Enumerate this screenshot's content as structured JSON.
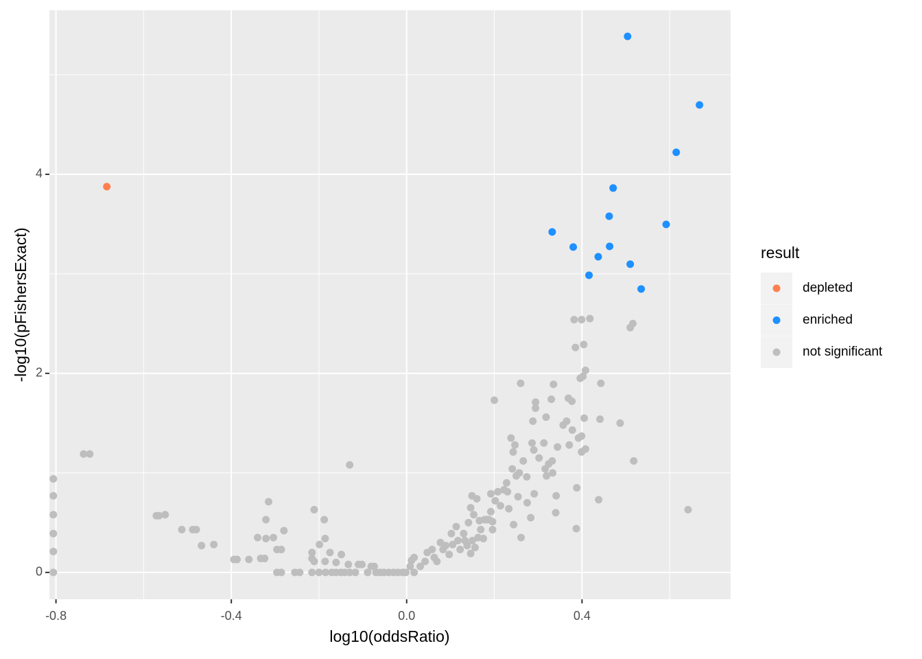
{
  "chart_data": {
    "type": "scatter",
    "xlabel": "log10(oddsRatio)",
    "ylabel": "-log10(pFishersExact)",
    "xlim": [
      -0.815,
      0.739
    ],
    "ylim": [
      -0.27,
      5.648
    ],
    "xticks": [
      -0.8,
      -0.4,
      {
        "value": 0,
        "label": "0.0"
      },
      0.4
    ],
    "yticks": [
      0,
      2,
      4
    ],
    "grid": true,
    "legend_title": "result",
    "legend_position": "right",
    "series": [
      {
        "name": "depleted",
        "color": "#FF7F50",
        "x": [
          -0.684
        ],
        "y": [
          3.876
        ]
      },
      {
        "name": "enriched",
        "color": "#1E90FF",
        "x": [
          0.504,
          0.668,
          0.615,
          0.471,
          0.462,
          0.592,
          0.332,
          0.38,
          0.463,
          0.437,
          0.51,
          0.416,
          0.535
        ],
        "y": [
          5.386,
          4.697,
          4.221,
          3.862,
          3.579,
          3.497,
          3.421,
          3.269,
          3.276,
          3.172,
          3.097,
          2.986,
          2.848
        ]
      },
      {
        "name": "not significant",
        "color": "#BEBEBE",
        "x": [
          -0.806,
          -0.806,
          -0.806,
          -0.806,
          -0.806,
          -0.806,
          -0.737,
          -0.723,
          -0.571,
          -0.565,
          -0.551,
          -0.513,
          -0.488,
          -0.48,
          -0.468,
          -0.44,
          -0.394,
          -0.387,
          -0.36,
          -0.333,
          -0.324,
          -0.34,
          -0.321,
          -0.304,
          -0.321,
          -0.315,
          -0.296,
          -0.286,
          -0.28,
          -0.296,
          -0.286,
          -0.255,
          -0.244,
          -0.216,
          -0.211,
          -0.216,
          -0.199,
          -0.188,
          -0.186,
          -0.186,
          -0.211,
          -0.175,
          -0.161,
          -0.149,
          -0.13,
          -0.133,
          -0.216,
          -0.2,
          -0.185,
          -0.171,
          -0.161,
          -0.15,
          -0.141,
          -0.13,
          -0.117,
          -0.11,
          -0.102,
          -0.089,
          -0.081,
          -0.074,
          -0.07,
          -0.061,
          -0.052,
          -0.041,
          -0.03,
          -0.02,
          -0.009,
          -0.002,
          0.017,
          0.011,
          0.017,
          0.008,
          0.031,
          0.042,
          0.047,
          0.058,
          0.063,
          0.069,
          0.077,
          0.083,
          0.089,
          0.097,
          0.102,
          0.105,
          0.113,
          0.117,
          0.122,
          0.13,
          0.133,
          0.138,
          0.141,
          0.146,
          0.146,
          0.149,
          0.15,
          0.153,
          0.156,
          0.16,
          0.163,
          0.166,
          0.169,
          0.175,
          0.178,
          0.183,
          0.188,
          0.192,
          0.192,
          0.196,
          0.196,
          0.2,
          0.202,
          0.208,
          0.214,
          0.222,
          0.228,
          0.23,
          0.233,
          0.238,
          0.241,
          0.243,
          0.244,
          0.247,
          0.25,
          0.254,
          0.257,
          0.26,
          0.261,
          0.266,
          0.274,
          0.275,
          0.283,
          0.286,
          0.288,
          0.29,
          0.291,
          0.294,
          0.294,
          0.302,
          0.313,
          0.316,
          0.318,
          0.319,
          0.324,
          0.33,
          0.332,
          0.333,
          0.335,
          0.34,
          0.341,
          0.344,
          0.357,
          0.365,
          0.369,
          0.371,
          0.377,
          0.378,
          0.382,
          0.385,
          0.387,
          0.388,
          0.392,
          0.396,
          0.399,
          0.399,
          0.402,
          0.404,
          0.405,
          0.408,
          0.408,
          0.418,
          0.438,
          0.441,
          0.443,
          0.487,
          0.51,
          0.516,
          0.518,
          0.642,
          0.399
        ],
        "y": [
          0.94,
          0.77,
          0.58,
          0.39,
          0.21,
          0,
          1.19,
          1.19,
          0.57,
          0.57,
          0.58,
          0.43,
          0.43,
          0.43,
          0.27,
          0.28,
          0.13,
          0.13,
          0.13,
          0.14,
          0.14,
          0.35,
          0.34,
          0.35,
          0.53,
          0.71,
          0.23,
          0.23,
          0.42,
          0,
          0,
          0,
          0,
          0.14,
          0.63,
          0.2,
          0.28,
          0.53,
          0.34,
          0.11,
          0.11,
          0.2,
          0.1,
          0.18,
          1.08,
          0.08,
          0,
          0,
          0,
          0,
          0,
          0,
          0,
          0,
          0,
          0.08,
          0.08,
          0,
          0.06,
          0.06,
          0,
          0,
          0,
          0,
          0,
          0,
          0,
          0,
          0,
          0.12,
          0.15,
          0.06,
          0.06,
          0.11,
          0.2,
          0.23,
          0.15,
          0.11,
          0.3,
          0.23,
          0.27,
          0.18,
          0.39,
          0.28,
          0.46,
          0.32,
          0.23,
          0.39,
          0.32,
          0.27,
          0.5,
          0.19,
          0.65,
          0.77,
          0.32,
          0.58,
          0.25,
          0.74,
          0.35,
          0.52,
          0.43,
          0.34,
          0.53,
          0.53,
          0.53,
          0.79,
          0.61,
          0.51,
          0.43,
          1.73,
          0.72,
          0.81,
          0.67,
          0.83,
          0.9,
          0.81,
          0.64,
          1.35,
          1.04,
          1.21,
          0.48,
          1.28,
          0.97,
          0.76,
          1.0,
          1.9,
          0.35,
          1.12,
          0.96,
          0.7,
          0.55,
          1.3,
          1.52,
          1.23,
          0.79,
          1.65,
          1.71,
          1.15,
          1.3,
          1.04,
          1.56,
          0.97,
          1.09,
          1.74,
          1.12,
          1.0,
          1.89,
          0.6,
          0.77,
          1.26,
          1.48,
          1.52,
          1.75,
          1.28,
          1.72,
          1.43,
          2.54,
          2.26,
          0.44,
          0.85,
          1.35,
          1.95,
          2.54,
          1.37,
          1.97,
          2.29,
          1.55,
          1.24,
          2.03,
          2.55,
          0.73,
          1.54,
          1.9,
          1.5,
          2.46,
          2.5,
          1.12,
          0.63,
          1.21
        ]
      }
    ]
  }
}
